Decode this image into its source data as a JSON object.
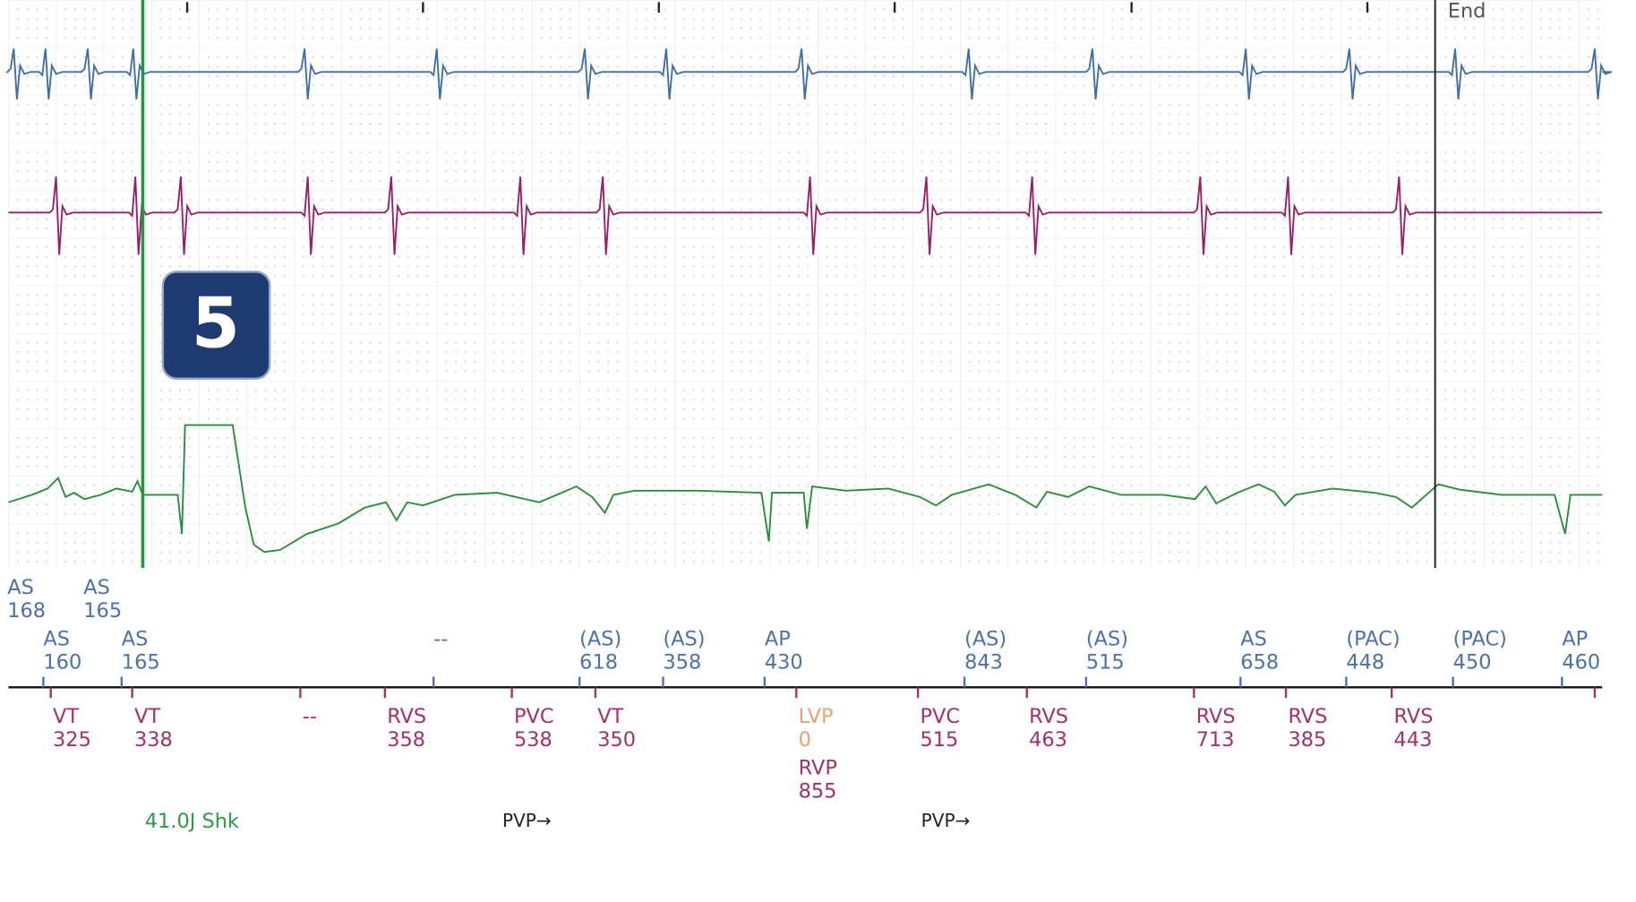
{
  "end_label": "End",
  "badge": "5",
  "atrial_top": [
    {
      "label": "AS",
      "value": 168
    },
    {
      "label": "AS",
      "value": 165
    }
  ],
  "atrial": [
    {
      "label": "AS",
      "value": 160
    },
    {
      "label": "AS",
      "value": 165
    },
    {
      "label": "--"
    },
    {
      "label": "(AS)",
      "value": 618
    },
    {
      "label": "(AS)",
      "value": 358
    },
    {
      "label": "AP",
      "value": 430
    },
    {
      "label": "(AS)",
      "value": 843
    },
    {
      "label": "(AS)",
      "value": 515
    },
    {
      "label": "AS",
      "value": 658
    },
    {
      "label": "(PAC)",
      "value": 448
    },
    {
      "label": "(PAC)",
      "value": 450
    },
    {
      "label": "AP",
      "value": 460
    }
  ],
  "ventricular": [
    {
      "label": "VT",
      "value": 325
    },
    {
      "label": "VT",
      "value": 338
    },
    {
      "label": "--"
    },
    {
      "label": "RVS",
      "value": 358
    },
    {
      "label": "PVC",
      "value": 538
    },
    {
      "label": "VT",
      "value": 350
    },
    {
      "label": "LVP",
      "value": 0,
      "extra_label": "RVP",
      "extra_value": 855
    },
    {
      "label": "PVC",
      "value": 515
    },
    {
      "label": "RVS",
      "value": 463
    },
    {
      "label": "RVS",
      "value": 713
    },
    {
      "label": "RVS",
      "value": 385
    },
    {
      "label": "RVS",
      "value": 443
    }
  ],
  "shock": "41.0J Shk",
  "pvp": [
    "PVP→",
    "PVP→"
  ]
}
